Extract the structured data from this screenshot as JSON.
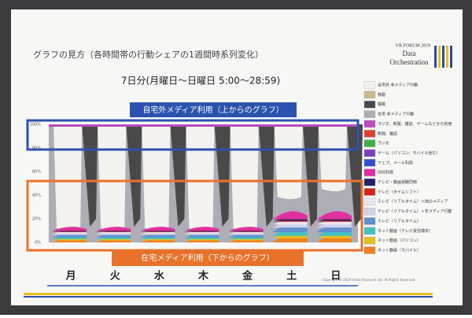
{
  "slide": {
    "title": "グラフの見方（各時間帯の行動シェアの1週間時系列変化）",
    "logo": {
      "line1": "VR FORUM 2019",
      "line2": "Data",
      "line3": "Orchestration"
    },
    "subtitle": "7日分(月曜日～日曜日 5:00～28:59)",
    "top_label": "自宅外メディア利用（上からのグラフ）",
    "bottom_label": "在宅メディア利用（下からのグラフ）",
    "yticks": [
      "100%",
      "80%",
      "60%",
      "40%",
      "20%",
      "0%"
    ],
    "days": [
      "月",
      "火",
      "水",
      "木",
      "金",
      "土",
      "日"
    ],
    "legend": [
      {
        "label": "自宅外 非メディア行動",
        "color": "#f4f2ee"
      },
      {
        "label": "移動",
        "color": "#c9b98c"
      },
      {
        "label": "睡眠",
        "color": "#4a4848"
      },
      {
        "label": "在宅 非メディア行動",
        "color": "#aeadb6"
      },
      {
        "label": "ラジオ、新聞、雑誌、ゲームなどから利用",
        "color": "#b84cc0"
      },
      {
        "label": "新聞、雑誌",
        "color": "#e04030"
      },
      {
        "label": "ラジオ",
        "color": "#3fae46"
      },
      {
        "label": "ゲーム（パソコン、モバイル含む）",
        "color": "#7b3fc0"
      },
      {
        "label": "ウェブ、メール利用",
        "color": "#3050d0"
      },
      {
        "label": "SNS利用",
        "color": "#e030a0"
      },
      {
        "label": "テレビ・動画視聴同時",
        "color": "#222266"
      },
      {
        "label": "テレビ（タイムシフト）",
        "color": "#d02424"
      },
      {
        "label": "テレビ（リアルタイム）＋他のメディア",
        "color": "#ebe4f2"
      },
      {
        "label": "テレビ（リアルタイム）＋非メディア行動",
        "color": "#cfd2ea"
      },
      {
        "label": "テレビ（リアルタイム）",
        "color": "#5f8fd2"
      },
      {
        "label": "ネット動画（テレビ受信端末）",
        "color": "#3fc2c2"
      },
      {
        "label": "ネット動画（パソコン）",
        "color": "#e2c21e"
      },
      {
        "label": "ネット動画（モバイル）",
        "color": "#f08020"
      }
    ],
    "copyright": "Copyright © 2019 Video Research Ltd. All Rights Reserved."
  }
}
